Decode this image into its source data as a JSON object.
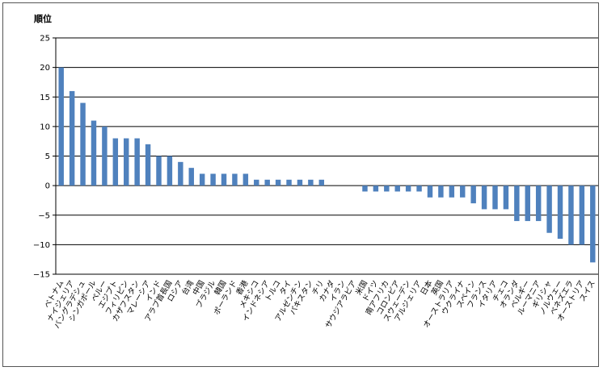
{
  "chart_data": {
    "type": "bar",
    "title": "",
    "xlabel": "",
    "ylabel": "順位",
    "ylim": [
      -15,
      25
    ],
    "yticks": [
      25,
      20,
      15,
      10,
      5,
      0,
      -5,
      -10,
      -15
    ],
    "grid": true,
    "bar_color": "#4f81bd",
    "categories": [
      "ベトナム",
      "ナイジェリア",
      "バングラデシュ",
      "シンガポール",
      "ペルー",
      "エジプト",
      "フィリピン",
      "カザフスタン",
      "マレーシア",
      "インド",
      "アラブ首長国",
      "ロシア",
      "台湾",
      "中国",
      "ブラジル",
      "韓国",
      "ポーランド",
      "香港",
      "メキシコ",
      "インドネシア",
      "トルコ",
      "タイ",
      "アルゼンチン",
      "パキスタン",
      "チリ",
      "カナダ",
      "イラン",
      "サウジアラビア",
      "米国",
      "ドイツ",
      "南アフリカ",
      "コロンビア",
      "スウェーデン",
      "アルジェリア",
      "日本",
      "英国",
      "オーストラリア",
      "ウクライナ",
      "スペイン",
      "フランス",
      "イタリア",
      "チェコ",
      "オランダ",
      "ベルギー",
      "ルーマニア",
      "ギリシャ",
      "ノルウェー",
      "ベネズエラ",
      "オーストリア",
      "スイス"
    ],
    "values": [
      20,
      16,
      14,
      11,
      10,
      8,
      8,
      8,
      7,
      5,
      5,
      4,
      3,
      2,
      2,
      2,
      2,
      2,
      1,
      1,
      1,
      1,
      1,
      1,
      1,
      0,
      0,
      0,
      -1,
      -1,
      -1,
      -1,
      -1,
      -1,
      -2,
      -2,
      -2,
      -2,
      -3,
      -4,
      -4,
      -4,
      -6,
      -6,
      -6,
      -8,
      -9,
      -10,
      -10,
      -13
    ]
  }
}
